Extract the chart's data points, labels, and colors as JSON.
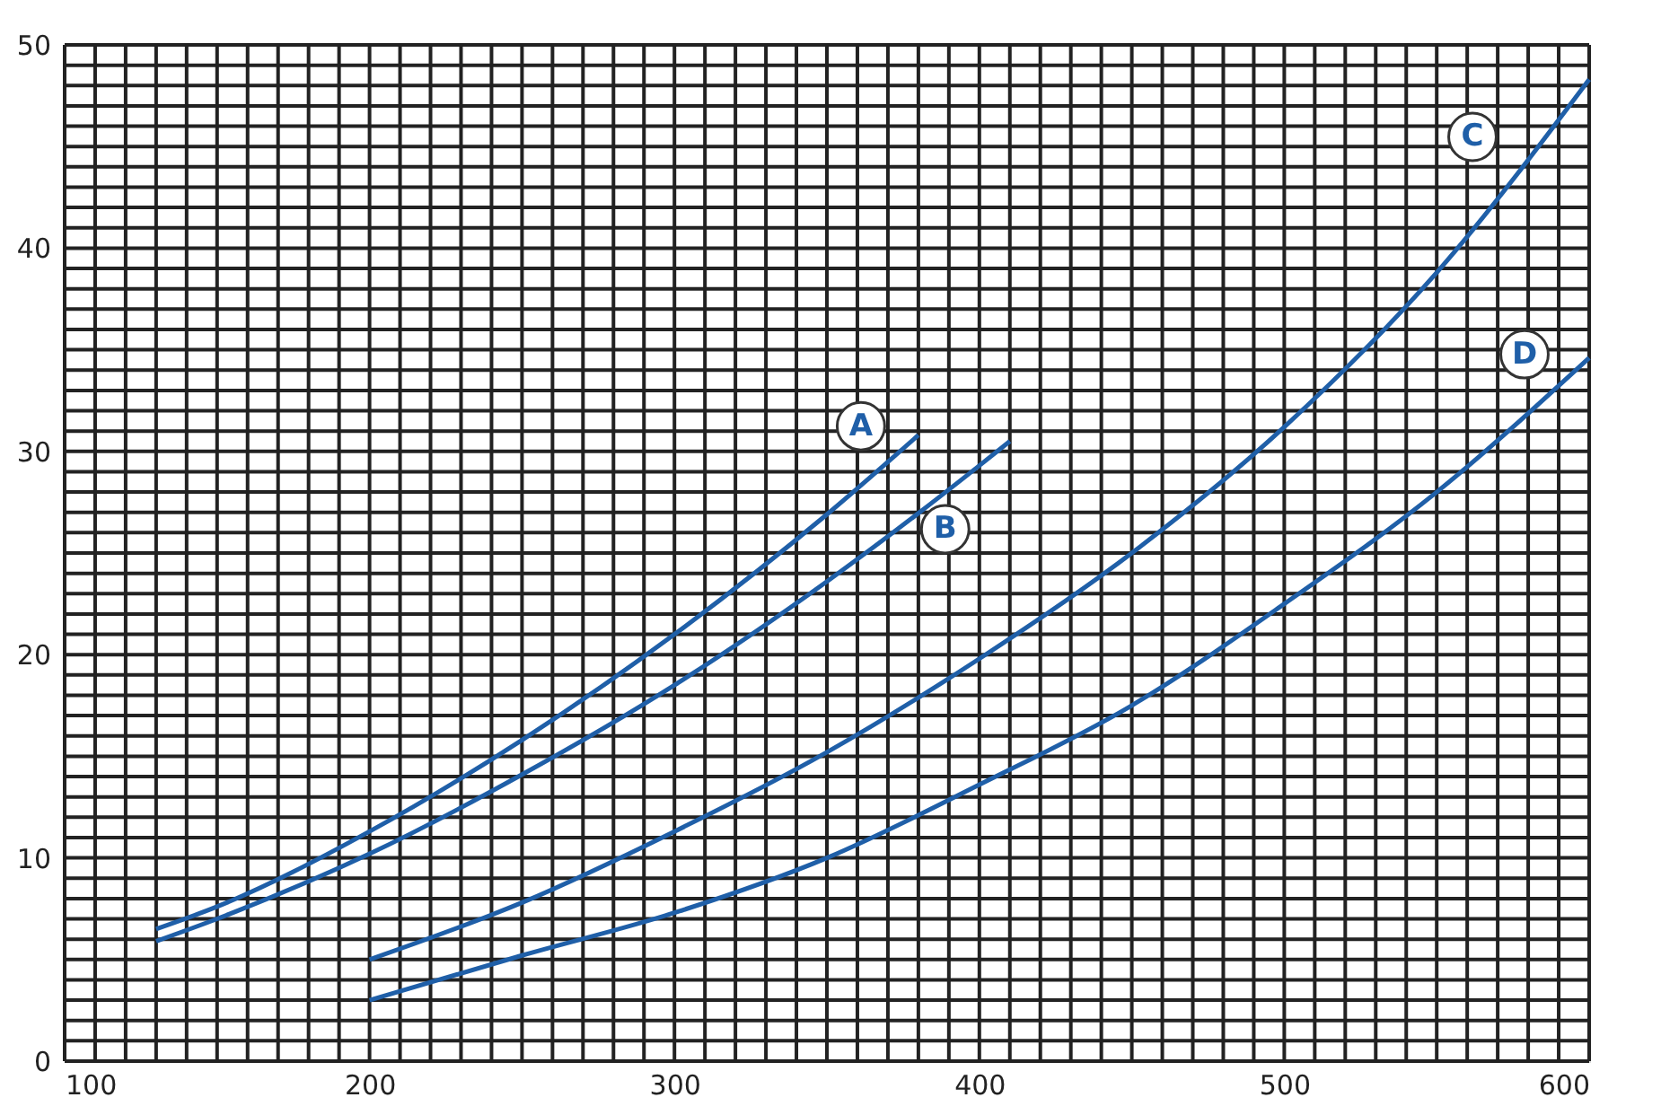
{
  "chart_data": {
    "type": "line",
    "xlim": [
      100,
      600
    ],
    "ylim": [
      0,
      50
    ],
    "xticks": [
      100,
      {
        "value": 110,
        "label": null
      },
      {
        "value": 120,
        "label": null
      },
      {
        "value": 130,
        "label": null
      },
      {
        "value": 140,
        "label": null
      },
      {
        "value": 150,
        "label": null
      },
      {
        "value": 160,
        "label": null
      },
      {
        "value": 170,
        "label": null
      },
      {
        "value": 180,
        "label": null
      },
      {
        "value": 190,
        "label": null
      },
      200,
      {
        "value": 210,
        "label": null
      },
      {
        "value": 220,
        "label": null
      },
      {
        "value": 230,
        "label": null
      },
      {
        "value": 240,
        "label": null
      },
      {
        "value": 250,
        "label": null
      },
      {
        "value": 260,
        "label": null
      },
      {
        "value": 270,
        "label": null
      },
      {
        "value": 280,
        "label": null
      },
      {
        "value": 290,
        "label": null
      },
      300,
      {
        "value": 310,
        "label": null
      },
      {
        "value": 320,
        "label": null
      },
      {
        "value": 330,
        "label": null
      },
      {
        "value": 340,
        "label": null
      },
      {
        "value": 350,
        "label": null
      },
      {
        "value": 360,
        "label": null
      },
      {
        "value": 370,
        "label": null
      },
      {
        "value": 380,
        "label": null
      },
      {
        "value": 390,
        "label": null
      },
      400,
      {
        "value": 410,
        "label": null
      },
      {
        "value": 420,
        "label": null
      },
      {
        "value": 430,
        "label": null
      },
      {
        "value": 440,
        "label": null
      },
      {
        "value": 450,
        "label": null
      },
      {
        "value": 460,
        "label": null
      },
      {
        "value": 470,
        "label": null
      },
      {
        "value": 480,
        "label": null
      },
      {
        "value": 490,
        "label": null
      },
      500,
      {
        "value": 510,
        "label": null
      },
      {
        "value": 520,
        "label": null
      },
      {
        "value": 530,
        "label": null
      },
      {
        "value": 540,
        "label": null
      },
      {
        "value": 550,
        "label": null
      },
      {
        "value": 560,
        "label": null
      },
      {
        "value": 570,
        "label": null
      },
      {
        "value": 580,
        "label": null
      },
      {
        "value": 590,
        "label": null
      },
      600
    ],
    "yticks": [
      0,
      {
        "value": 1,
        "label": null
      },
      {
        "value": 2,
        "label": null
      },
      {
        "value": 3,
        "label": null
      },
      {
        "value": 4,
        "label": null
      },
      {
        "value": 5,
        "label": null
      },
      {
        "value": 6,
        "label": null
      },
      {
        "value": 7,
        "label": null
      },
      {
        "value": 8,
        "label": null
      },
      {
        "value": 9,
        "label": null
      },
      10,
      {
        "value": 11,
        "label": null
      },
      {
        "value": 12,
        "label": null
      },
      {
        "value": 13,
        "label": null
      },
      {
        "value": 14,
        "label": null
      },
      {
        "value": 15,
        "label": null
      },
      {
        "value": 16,
        "label": null
      },
      {
        "value": 17,
        "label": null
      },
      {
        "value": 18,
        "label": null
      },
      {
        "value": 19,
        "label": null
      },
      20,
      {
        "value": 21,
        "label": null
      },
      {
        "value": 22,
        "label": null
      },
      {
        "value": 23,
        "label": null
      },
      {
        "value": 24,
        "label": null
      },
      {
        "value": 25,
        "label": null
      },
      {
        "value": 26,
        "label": null
      },
      {
        "value": 27,
        "label": null
      },
      {
        "value": 28,
        "label": null
      },
      {
        "value": 29,
        "label": null
      },
      30,
      {
        "value": 31,
        "label": null
      },
      {
        "value": 32,
        "label": null
      },
      {
        "value": 33,
        "label": null
      },
      {
        "value": 34,
        "label": null
      },
      {
        "value": 35,
        "label": null
      },
      {
        "value": 36,
        "label": null
      },
      {
        "value": 37,
        "label": null
      },
      {
        "value": 38,
        "label": null
      },
      {
        "value": 39,
        "label": null
      },
      40,
      {
        "value": 41,
        "label": null
      },
      {
        "value": 42,
        "label": null
      },
      {
        "value": 43,
        "label": null
      },
      {
        "value": 44,
        "label": null
      },
      {
        "value": 45,
        "label": null
      },
      {
        "value": 46,
        "label": null
      },
      {
        "value": 47,
        "label": null
      },
      {
        "value": 48,
        "label": null
      },
      {
        "value": 49,
        "label": null
      },
      50
    ],
    "grid": true,
    "series": [
      {
        "name": "A",
        "color": "#1f5fa8",
        "x": [
          130,
          150,
          200,
          250,
          300,
          350,
          380
        ],
        "values": [
          6.5,
          7.6,
          11.3,
          15.8,
          21,
          26.9,
          30.8
        ]
      },
      {
        "name": "B",
        "color": "#1f5fa8",
        "x": [
          130,
          150,
          200,
          250,
          300,
          350,
          400,
          410
        ],
        "values": [
          5.9,
          7.0,
          10.2,
          14.1,
          18.5,
          23.6,
          29.3,
          30.5
        ]
      },
      {
        "name": "C",
        "color": "#1f5fa8",
        "x": [
          200,
          250,
          300,
          350,
          400,
          450,
          500,
          550,
          600
        ],
        "values": [
          5,
          7.8,
          11.3,
          15.2,
          19.8,
          25,
          31.2,
          38.8,
          48.3
        ]
      },
      {
        "name": "D",
        "color": "#1f5fa8",
        "x": [
          200,
          250,
          300,
          350,
          400,
          450,
          500,
          550,
          600
        ],
        "values": [
          3,
          5.2,
          7.3,
          10,
          13.6,
          17.5,
          22.5,
          28,
          34.6
        ]
      }
    ]
  }
}
